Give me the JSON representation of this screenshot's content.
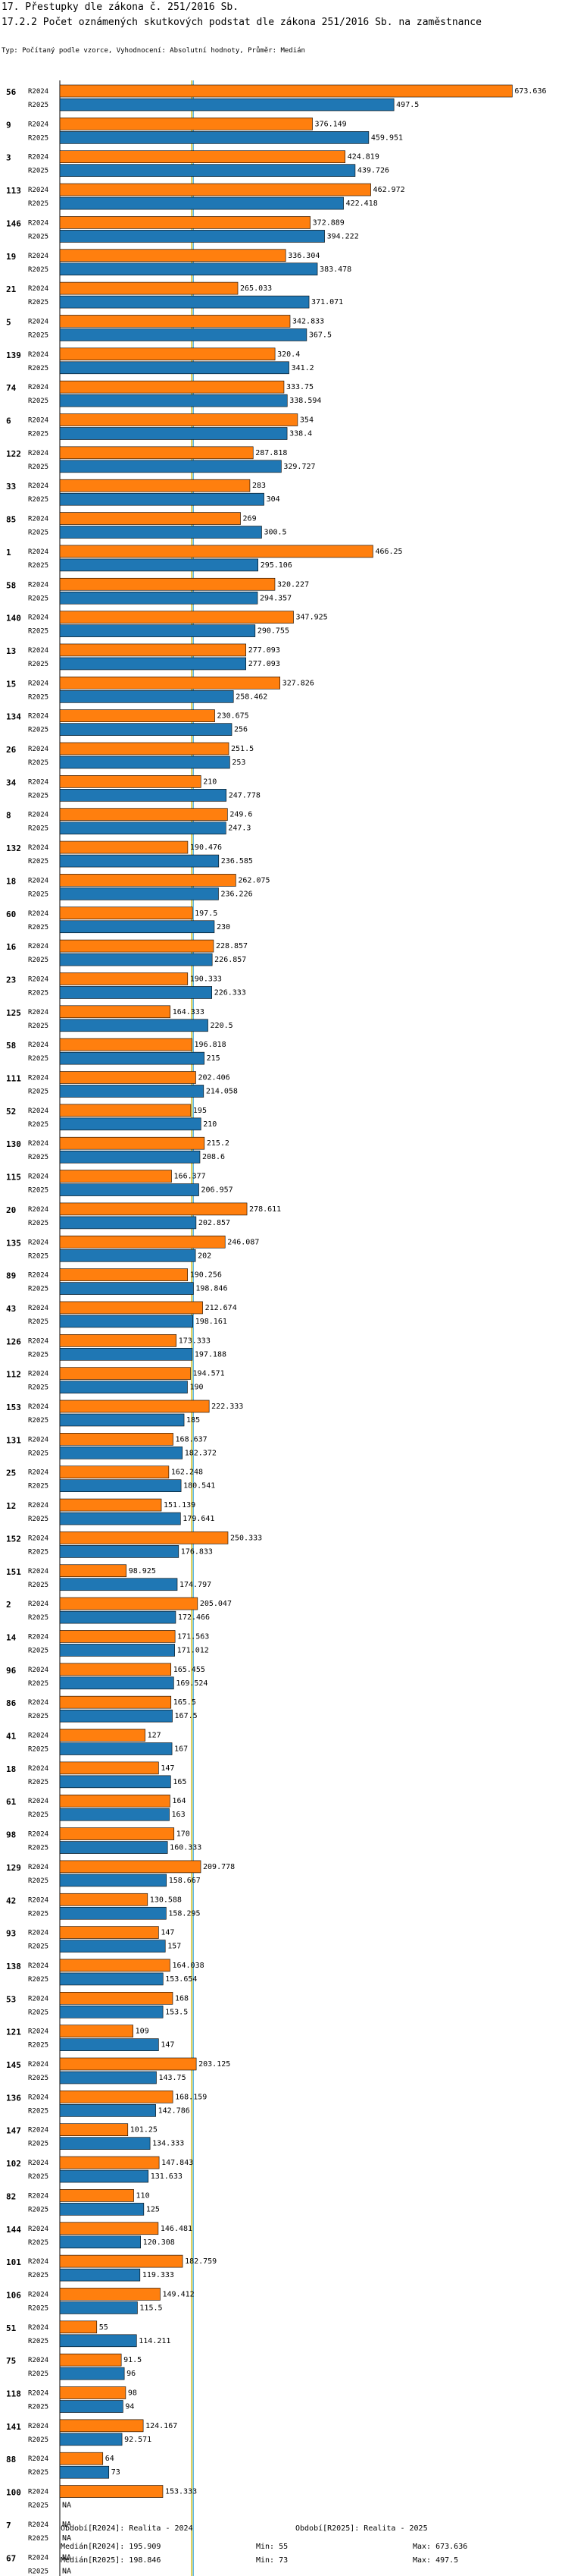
{
  "header": {
    "title1": "17. Přestupky dle zákona č. 251/2016 Sb.",
    "title2": "17.2.2 Počet oznámených skutkových podstat dle zákona 251/2016 Sb. na zaměstnance",
    "subtitle": "Typ: Počítaný podle vzorce, Vyhodnocení: Absolutní hodnoty, Průměr: Medián"
  },
  "colors": {
    "r2024": "#ff7f0e",
    "r2025": "#1f77b4",
    "median2024": "#f0c000",
    "median2025": "#40a8e0",
    "median_line": "#a8c890"
  },
  "chart_data": {
    "type": "bar",
    "orientation": "horizontal",
    "title": "17.2.2 Počet oznámených skutkových podstat dle zákona 251/2016 Sb. na zaměstnance",
    "series_names": [
      "R2024",
      "R2025"
    ],
    "xlim": [
      0,
      680
    ],
    "medians": [
      195.909,
      198.846
    ],
    "na_label": "NA",
    "categories": [
      "56",
      "9",
      "3",
      "113",
      "146",
      "19",
      "21",
      "5",
      "139",
      "74",
      "6",
      "122",
      "33",
      "85",
      "1",
      "58",
      "140",
      "13",
      "15",
      "134",
      "26",
      "34",
      "8",
      "132",
      "18",
      "60",
      "16",
      "23",
      "125",
      "58",
      "111",
      "52",
      "130",
      "115",
      "20",
      "135",
      "89",
      "43",
      "126",
      "112",
      "153",
      "131",
      "25",
      "12",
      "152",
      "151",
      "2",
      "14",
      "96",
      "86",
      "41",
      "18",
      "61",
      "98",
      "129",
      "42",
      "93",
      "138",
      "53",
      "121",
      "145",
      "136",
      "147",
      "102",
      "82",
      "144",
      "101",
      "106",
      "51",
      "75",
      "118",
      "141",
      "88",
      "100",
      "7",
      "67"
    ],
    "series": [
      {
        "name": "R2024",
        "values": [
          673.636,
          376.149,
          424.819,
          462.972,
          372.889,
          336.304,
          265.033,
          342.833,
          320.4,
          333.75,
          354,
          287.818,
          283,
          269,
          466.25,
          320.227,
          347.925,
          277.093,
          327.826,
          230.675,
          251.5,
          210,
          249.6,
          190.476,
          262.075,
          197.5,
          228.857,
          190.333,
          164.333,
          196.818,
          202.406,
          195,
          215.2,
          166.377,
          278.611,
          246.087,
          190.256,
          212.674,
          173.333,
          194.571,
          222.333,
          168.637,
          162.248,
          151.139,
          250.333,
          98.925,
          205.047,
          171.563,
          165.455,
          165.5,
          127,
          147,
          164,
          170,
          209.778,
          130.588,
          147,
          164.038,
          168,
          109,
          203.125,
          168.159,
          101.25,
          147.843,
          110,
          146.481,
          182.759,
          149.412,
          55,
          91.5,
          98,
          124.167,
          64,
          153.333,
          null,
          null
        ]
      },
      {
        "name": "R2025",
        "values": [
          497.5,
          459.951,
          439.726,
          422.418,
          394.222,
          383.478,
          371.071,
          367.5,
          341.2,
          338.594,
          338.4,
          329.727,
          304,
          300.5,
          295.106,
          294.357,
          290.755,
          277.093,
          258.462,
          256,
          253,
          247.778,
          247.3,
          236.585,
          236.226,
          230,
          226.857,
          226.333,
          220.5,
          215,
          214.058,
          210,
          208.6,
          206.957,
          202.857,
          202,
          198.846,
          198.161,
          197.188,
          190,
          185,
          182.372,
          180.541,
          179.641,
          176.833,
          174.797,
          172.466,
          171.012,
          169.524,
          167.5,
          167,
          165,
          163,
          160.333,
          158.667,
          158.295,
          157,
          153.654,
          153.5,
          147,
          143.75,
          142.786,
          134.333,
          131.633,
          125,
          120.308,
          119.333,
          115.5,
          114.211,
          96,
          94,
          92.571,
          73,
          null,
          null,
          null
        ]
      }
    ]
  },
  "footer": {
    "period2024": "Období[R2024]: Realita - 2024",
    "period2025": "Období[R2025]: Realita - 2025",
    "median2024": "Medián[R2024]: 195.909",
    "median2025": "Medián[R2025]: 198.846",
    "min2024": "Min: 55",
    "min2025": "Min: 73",
    "max2024": "Max: 673.636",
    "max2025": "Max: 497.5"
  }
}
